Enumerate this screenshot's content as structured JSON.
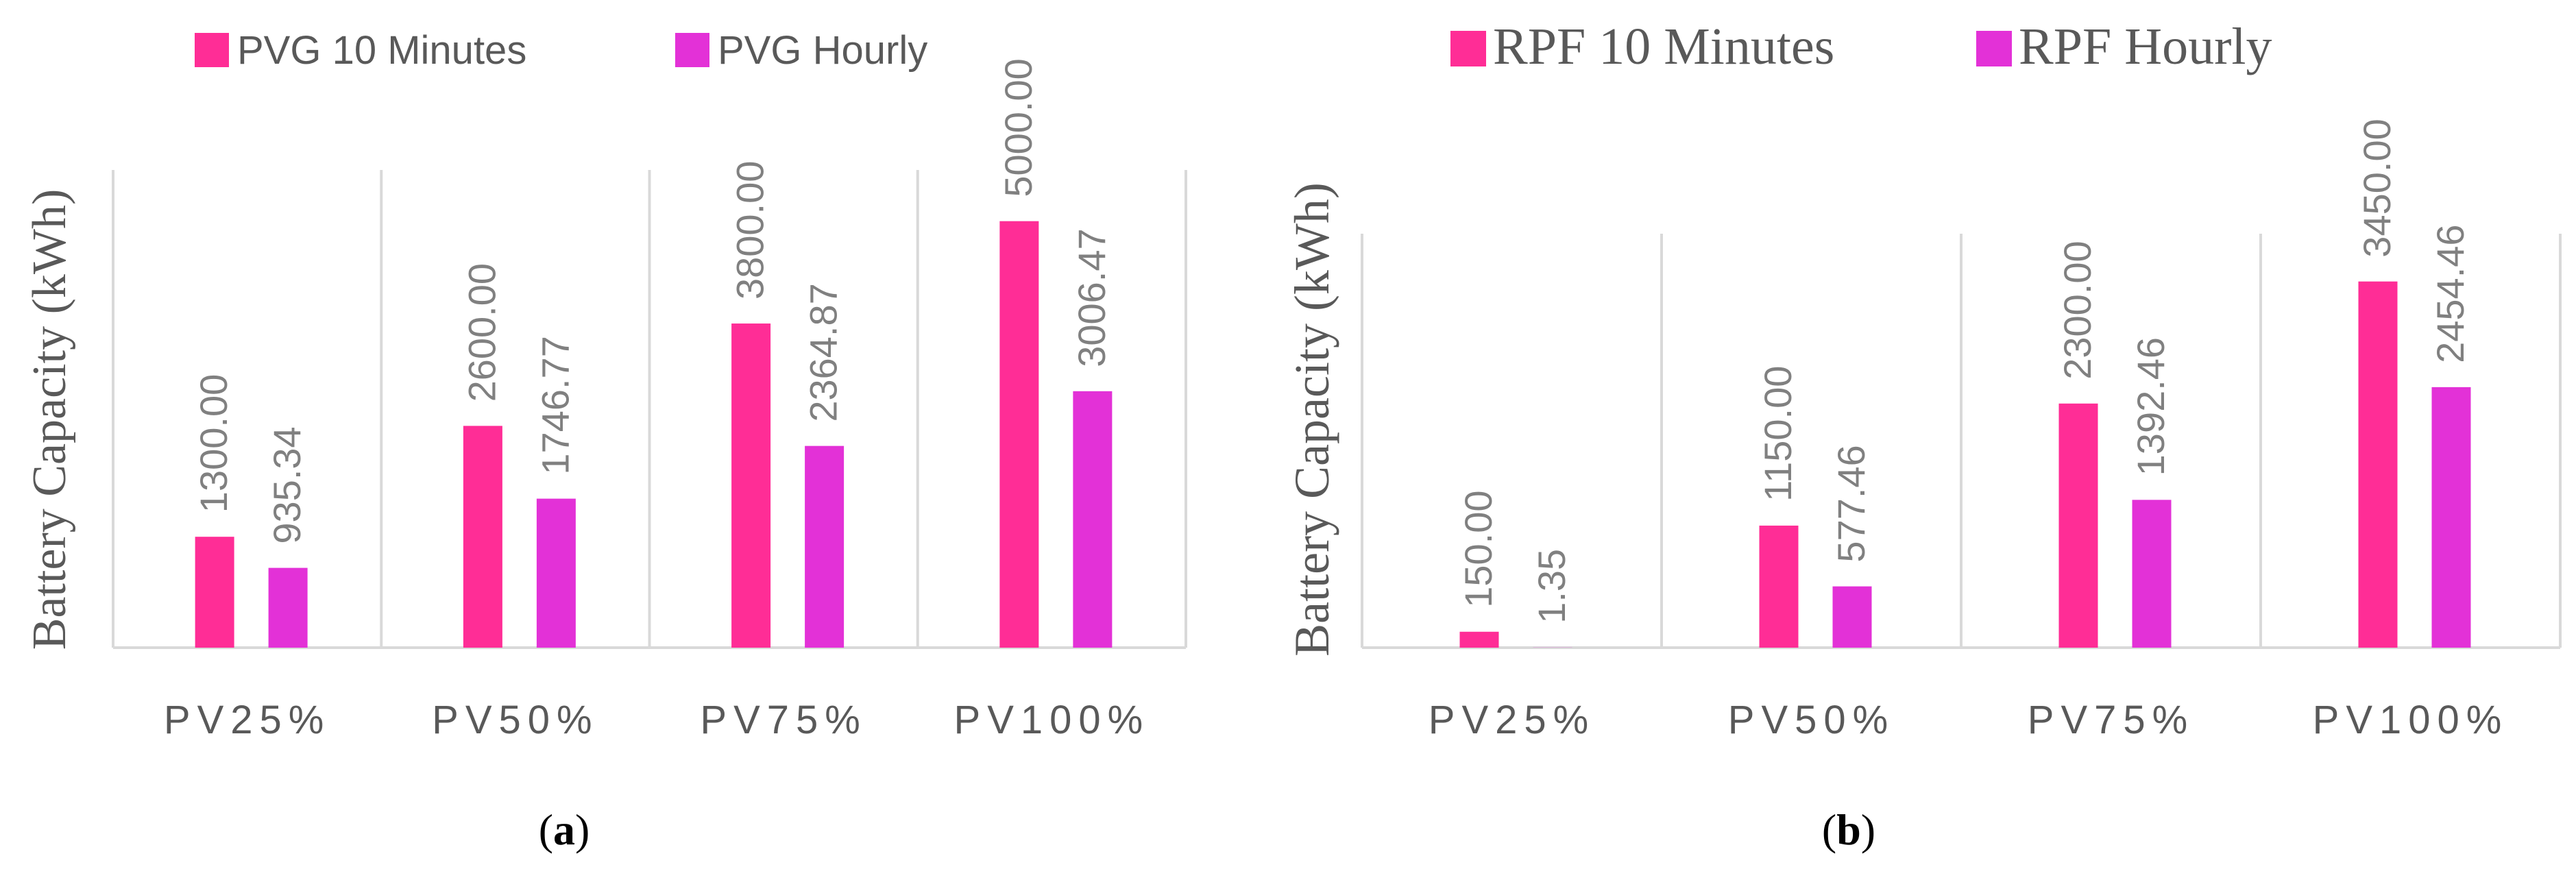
{
  "colors": {
    "series_10min": "#FF2D96",
    "series_hourly": "#E331D7",
    "axis": "#D9D9D9",
    "text": "#595959",
    "data_label": "#808080"
  },
  "chart_data": [
    {
      "type": "bar",
      "panel": "a",
      "ylabel": "Battery Capacity (kWh)",
      "categories": [
        "PV25%",
        "PV50%",
        "PV75%",
        "PV100%"
      ],
      "series": [
        {
          "name": "PVG 10 Minutes",
          "values": [
            1300.0,
            2600.0,
            3800.0,
            5000.0
          ],
          "labels": [
            "1300.00",
            "2600.00",
            "3800.00",
            "5000.00"
          ]
        },
        {
          "name": "PVG Hourly",
          "values": [
            935.34,
            1746.77,
            2364.87,
            3006.47
          ],
          "labels": [
            "935.34",
            "1746.77",
            "2364.87",
            "3006.47"
          ]
        }
      ],
      "ylim": [
        0,
        5600
      ],
      "grid": false,
      "legend_position": "top",
      "caption": {
        "open": "(",
        "letter": "a",
        "close": ")"
      }
    },
    {
      "type": "bar",
      "panel": "b",
      "ylabel": "Battery Capacity (kWh)",
      "categories": [
        "PV25%",
        "PV50%",
        "PV75%",
        "PV100%"
      ],
      "series": [
        {
          "name": "RPF 10 Minutes",
          "values": [
            150.0,
            1150.0,
            2300.0,
            3450.0
          ],
          "labels": [
            "150.00",
            "1150.00",
            "2300.00",
            "3450.00"
          ]
        },
        {
          "name": "RPF Hourly",
          "values": [
            1.35,
            577.46,
            1392.46,
            2454.46
          ],
          "labels": [
            "1.35",
            "577.46",
            "1392.46",
            "2454.46"
          ]
        }
      ],
      "ylim": [
        0,
        3900
      ],
      "grid": false,
      "legend_position": "top",
      "caption": {
        "open": "(",
        "letter": "b",
        "close": ")"
      }
    }
  ]
}
